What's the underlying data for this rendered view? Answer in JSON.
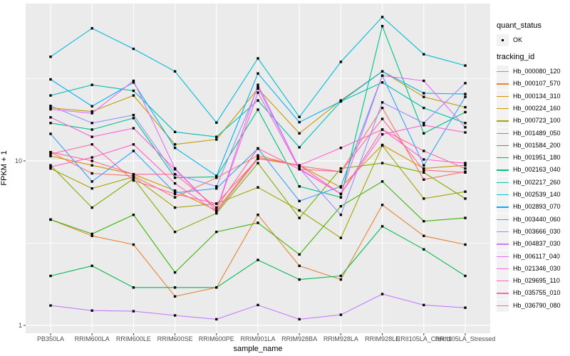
{
  "figure": {
    "y_axis": {
      "title": "FPKM + 1",
      "ticks": [
        "10",
        "1"
      ]
    },
    "x_axis": {
      "title": "sample_name"
    },
    "legend": {
      "quant_title": "quant_status",
      "quant_item_label": "OK",
      "tracking_title": "tracking_id"
    }
  },
  "chart_data": {
    "type": "line",
    "title": "",
    "xlabel": "sample_name",
    "ylabel": "FPKM + 1",
    "y_scale": "log10",
    "ylim": [
      0.9,
      92
    ],
    "y_major_breaks": [
      1,
      10
    ],
    "y_minor_breaks": [
      3.162,
      31.62
    ],
    "grid": true,
    "legend_position": "right",
    "panel_bg": "#ebebeb",
    "grid_color": "#ffffff",
    "point_color": "#000000",
    "quant_status": "OK",
    "categories": [
      "PB350LA",
      "RRIM600LA",
      "RRIM600LE",
      "RRIM600SE",
      "RRIM600PE",
      "RRIM901LA",
      "RRIM928BA",
      "RRIM928LA",
      "RRIM928LE",
      "RRII105LA_Control",
      "RRII105LA_Stressed"
    ],
    "series": [
      {
        "name": "Hb_000080_120",
        "color": "#F8766D",
        "values": [
          11.3,
          8.4,
          8.1,
          6.0,
          7.9,
          10.8,
          9.3,
          8.6,
          21.0,
          7.7,
          8.6
        ]
      },
      {
        "name": "Hb_000107_570",
        "color": "#EA8331",
        "values": [
          4.4,
          3.5,
          3.1,
          1.5,
          1.7,
          4.7,
          2.3,
          1.9,
          5.4,
          3.5,
          3.1
        ]
      },
      {
        "name": "Hb_000134_310",
        "color": "#D89000",
        "values": [
          10.7,
          9.4,
          8.3,
          6.6,
          5.0,
          10.5,
          9.4,
          6.9,
          12.5,
          9.0,
          9.4
        ]
      },
      {
        "name": "Hb_000224_160",
        "color": "#C09B00",
        "values": [
          21.0,
          20.0,
          25.0,
          12.6,
          13.5,
          27.5,
          14.7,
          23.3,
          35.0,
          24.5,
          21.2
        ]
      },
      {
        "name": "Hb_000723_100",
        "color": "#A3A500",
        "values": [
          9.0,
          6.8,
          8.0,
          5.2,
          5.5,
          6.9,
          5.0,
          3.4,
          12.4,
          5.9,
          6.5
        ]
      },
      {
        "name": "Hb_001489_050",
        "color": "#7CAE00",
        "values": [
          9.4,
          5.2,
          7.8,
          3.7,
          4.8,
          9.7,
          4.5,
          9.0,
          9.7,
          8.5,
          5.9
        ]
      },
      {
        "name": "Hb_001584_200",
        "color": "#39B600",
        "values": [
          4.4,
          3.6,
          4.7,
          2.1,
          3.7,
          4.2,
          2.7,
          5.3,
          7.5,
          4.3,
          4.5
        ]
      },
      {
        "name": "Hb_001951_180",
        "color": "#00BB4E",
        "values": [
          2.0,
          2.3,
          1.7,
          1.7,
          1.7,
          2.5,
          1.9,
          2.0,
          4.0,
          2.9,
          2.0
        ]
      },
      {
        "name": "Hb_002163_040",
        "color": "#00C087",
        "values": [
          17.0,
          15.5,
          18.2,
          7.9,
          8.0,
          20.5,
          7.0,
          6.0,
          66.0,
          14.7,
          19.8
        ]
      },
      {
        "name": "Hb_002217_260",
        "color": "#00C0AF",
        "values": [
          25.0,
          29.0,
          26.7,
          15.0,
          14.0,
          23.3,
          12.1,
          23.0,
          30.0,
          21.0,
          17.0
        ]
      },
      {
        "name": "Hb_002539_140",
        "color": "#00BCD8",
        "values": [
          43.0,
          64.0,
          48.0,
          35.0,
          17.1,
          42.0,
          18.5,
          40.0,
          75.0,
          44.5,
          38.0
        ]
      },
      {
        "name": "Hb_002893_070",
        "color": "#00B0F6",
        "values": [
          31.3,
          21.5,
          30.0,
          12.0,
          8.1,
          34.0,
          17.2,
          23.0,
          35.0,
          25.8,
          25.5
        ]
      },
      {
        "name": "Hb_003440_060",
        "color": "#35A2FF",
        "values": [
          14.6,
          7.5,
          11.5,
          6.4,
          6.8,
          11.9,
          5.7,
          7.0,
          33.0,
          9.4,
          24.5
        ]
      },
      {
        "name": "Hb_003666_030",
        "color": "#9590FF",
        "values": [
          21.6,
          17.0,
          19.0,
          8.3,
          7.0,
          28.0,
          9.0,
          4.7,
          22.7,
          17.0,
          29.7
        ]
      },
      {
        "name": "Hb_004837_030",
        "color": "#C77CFF",
        "values": [
          1.32,
          1.23,
          1.22,
          1.15,
          1.09,
          1.33,
          1.09,
          1.16,
          1.55,
          1.33,
          1.28
        ]
      },
      {
        "name": "Hb_006117_040",
        "color": "#E76BF3",
        "values": [
          20.6,
          19.5,
          30.7,
          9.0,
          5.0,
          29.0,
          9.0,
          6.3,
          33.0,
          30.7,
          16.0
        ]
      },
      {
        "name": "Hb_021346_030",
        "color": "#FA62DB",
        "values": [
          18.4,
          14.0,
          15.8,
          8.9,
          5.0,
          26.0,
          8.9,
          6.3,
          14.5,
          16.5,
          14.9
        ]
      },
      {
        "name": "Hb_029695_110",
        "color": "#FF61C9",
        "values": [
          9.2,
          10.5,
          12.6,
          7.3,
          4.9,
          10.3,
          9.4,
          12.0,
          15.5,
          10.2,
          9.7
        ]
      },
      {
        "name": "Hb_035755_010",
        "color": "#FF65AC",
        "values": [
          11.0,
          12.6,
          7.6,
          6.3,
          5.5,
          10.3,
          9.4,
          6.3,
          15.5,
          11.5,
          9.0
        ]
      },
      {
        "name": "Hb_036790_080",
        "color": "#FF6A98",
        "values": [
          11.3,
          10.0,
          8.3,
          8.3,
          5.2,
          11.9,
          8.9,
          8.6,
          18.0,
          8.8,
          8.5
        ]
      }
    ]
  }
}
